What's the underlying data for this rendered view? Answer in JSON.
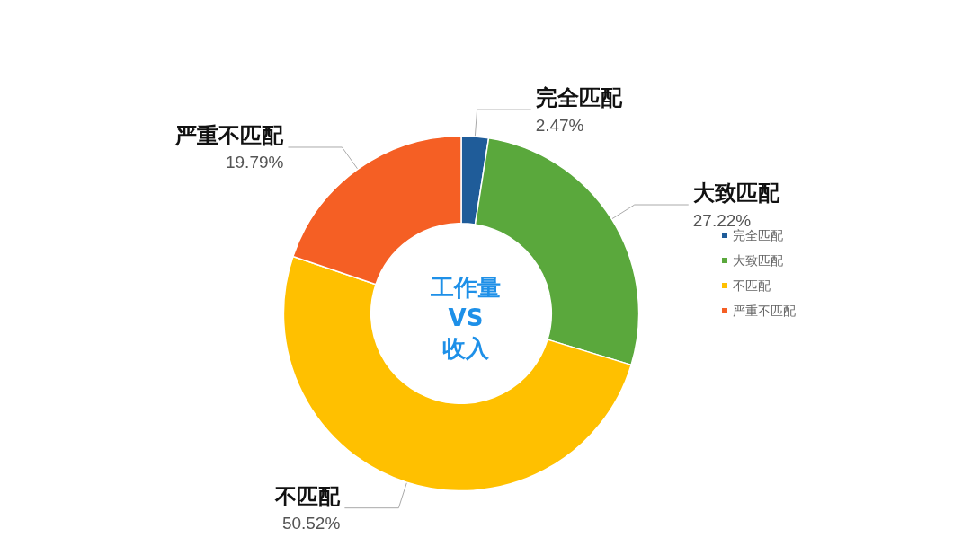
{
  "chart_data": {
    "type": "donut",
    "title": "工作量\nVS\n收入",
    "categories": [
      "完全匹配",
      "大致匹配",
      "不匹配",
      "严重不匹配"
    ],
    "values": [
      2.47,
      27.22,
      50.52,
      19.79
    ],
    "value_labels": [
      "2.47%",
      "27.22%",
      "50.52%",
      "19.79%"
    ],
    "colors": [
      "#1f5c99",
      "#5aa83c",
      "#ffc000",
      "#f55f24"
    ],
    "legend": "right"
  }
}
